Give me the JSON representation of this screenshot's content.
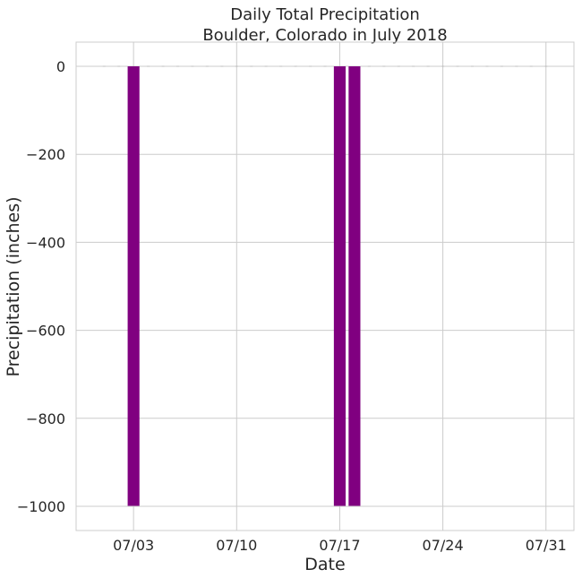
{
  "chart_data": {
    "type": "bar",
    "title": "Daily Total Precipitation",
    "subtitle": "Boulder, Colorado in July 2018",
    "xlabel": "Date",
    "ylabel": "Precipitation (inches)",
    "x_tick_labels": [
      "07/03",
      "07/10",
      "07/17",
      "07/24",
      "07/31"
    ],
    "x_tick_days": [
      3,
      10,
      17,
      24,
      31
    ],
    "y_ticks": [
      0,
      -200,
      -400,
      -600,
      -800,
      -1000
    ],
    "y_tick_labels": [
      "0",
      "−200",
      "−400",
      "−600",
      "−800",
      "−1000"
    ],
    "xlim_days": [
      -0.9,
      32.9
    ],
    "ylim": [
      -1055,
      55
    ],
    "grid": true,
    "bar_color": "#800080",
    "marker_color": "#bbbbbb",
    "dates": [
      "07/01",
      "07/02",
      "07/03",
      "07/04",
      "07/05",
      "07/06",
      "07/07",
      "07/08",
      "07/09",
      "07/10",
      "07/11",
      "07/12",
      "07/13",
      "07/14",
      "07/15",
      "07/16",
      "07/17",
      "07/18",
      "07/19",
      "07/20",
      "07/21",
      "07/22",
      "07/23",
      "07/24",
      "07/25",
      "07/26",
      "07/27",
      "07/28",
      "07/29",
      "07/30",
      "07/31"
    ],
    "values": [
      0,
      0,
      -999,
      0,
      0,
      0,
      0,
      0,
      0,
      0,
      0,
      0,
      0,
      0,
      0,
      0,
      -999,
      -999,
      0,
      0,
      0,
      0,
      0,
      0,
      0,
      0,
      0,
      0,
      0,
      0,
      0
    ]
  }
}
